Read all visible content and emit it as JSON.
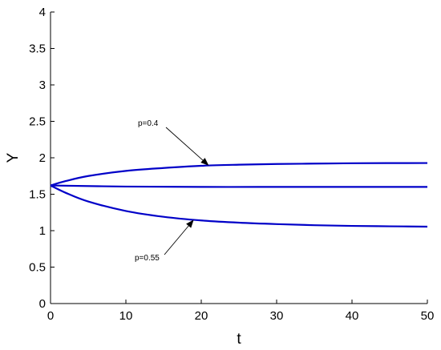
{
  "chart_data": {
    "type": "line",
    "title": "",
    "xlabel": "t",
    "ylabel": "Y",
    "xlim": [
      0,
      50
    ],
    "ylim": [
      0,
      4
    ],
    "xticks": [
      "0",
      "10",
      "20",
      "30",
      "40",
      "50"
    ],
    "yticks": [
      "0",
      "0.5",
      "1",
      "1.5",
      "2",
      "2.5",
      "3",
      "3.5",
      "4"
    ],
    "grid": false,
    "line_color": "#0000c8",
    "series": [
      {
        "x": [
          0,
          2,
          5,
          10,
          15,
          20,
          25,
          30,
          35,
          40,
          45,
          50
        ],
        "y": [
          1.62,
          1.68,
          1.75,
          1.82,
          1.86,
          1.89,
          1.905,
          1.915,
          1.92,
          1.925,
          1.927,
          1.928
        ]
      },
      {
        "x": [
          0,
          10,
          20,
          30,
          40,
          50
        ],
        "y": [
          1.62,
          1.605,
          1.6,
          1.6,
          1.6,
          1.6
        ]
      },
      {
        "x": [
          0,
          2,
          5,
          10,
          15,
          20,
          25,
          30,
          35,
          40,
          45,
          50
        ],
        "y": [
          1.62,
          1.52,
          1.4,
          1.27,
          1.19,
          1.14,
          1.11,
          1.09,
          1.075,
          1.065,
          1.06,
          1.055
        ]
      }
    ],
    "annotations": [
      {
        "text": "p=0.4",
        "series_index": 0,
        "at_x": 21
      },
      {
        "text": "p=0.55",
        "series_index": 2,
        "at_x": 19
      }
    ]
  }
}
